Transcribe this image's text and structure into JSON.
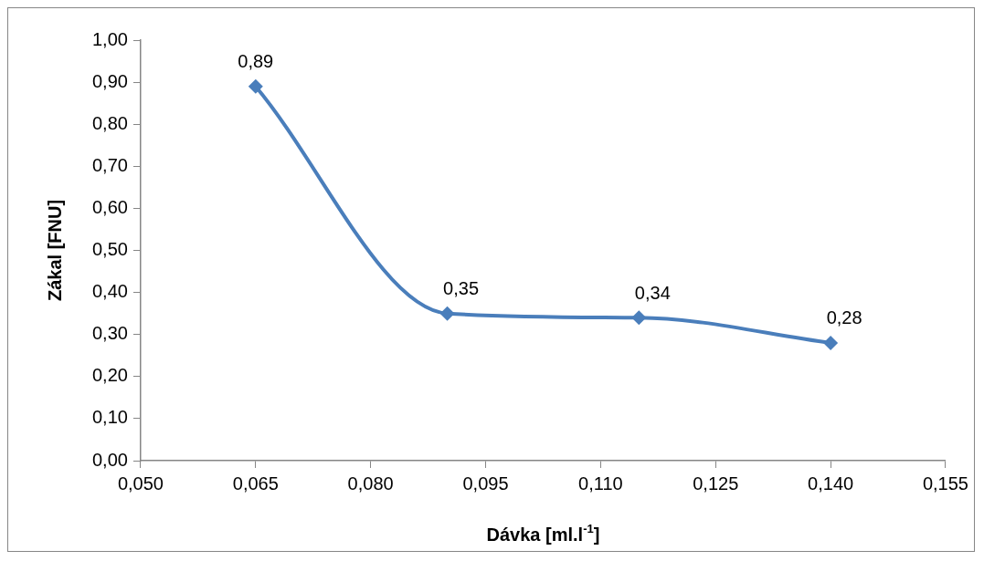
{
  "chart_data": {
    "type": "line",
    "xlabel": "Dávka [ml.l$^{-1}$]",
    "ylabel": "Zákal [FNU]",
    "x": [
      0.065,
      0.09,
      0.115,
      0.14
    ],
    "series": [
      {
        "color": "#4a7ebb",
        "values": [
          0.89,
          0.35,
          0.34,
          0.28
        ],
        "value_labels": [
          "0,89",
          "0,35",
          "0,34",
          "0,28"
        ]
      }
    ],
    "xlim": [
      0.05,
      0.155
    ],
    "xticks": [
      {
        "value": 0.05,
        "label": "0,050"
      },
      {
        "value": 0.065,
        "label": "0,065"
      },
      {
        "value": 0.08,
        "label": "0,080"
      },
      {
        "value": 0.095,
        "label": "0,095"
      },
      {
        "value": 0.11,
        "label": "0,110"
      },
      {
        "value": 0.125,
        "label": "0,125"
      },
      {
        "value": 0.14,
        "label": "0,140"
      },
      {
        "value": 0.155,
        "label": "0,155"
      }
    ],
    "ylim": [
      0,
      1
    ],
    "yticks": [
      {
        "value": 0,
        "label": "0,00"
      },
      {
        "value": 0.1,
        "label": "0,10"
      },
      {
        "value": 0.2,
        "label": "0,20"
      },
      {
        "value": 0.3,
        "label": "0,30"
      },
      {
        "value": 0.4,
        "label": "0,40"
      },
      {
        "value": 0.5,
        "label": "0,50"
      },
      {
        "value": 0.6,
        "label": "0,60"
      },
      {
        "value": 0.7,
        "label": "0,70"
      },
      {
        "value": 0.8,
        "label": "0,80"
      },
      {
        "value": 0.9,
        "label": "0,90"
      },
      {
        "value": 1,
        "label": "1,00"
      }
    ],
    "grid": false,
    "legend": false,
    "marker": "diamond",
    "line_style": "solid"
  }
}
